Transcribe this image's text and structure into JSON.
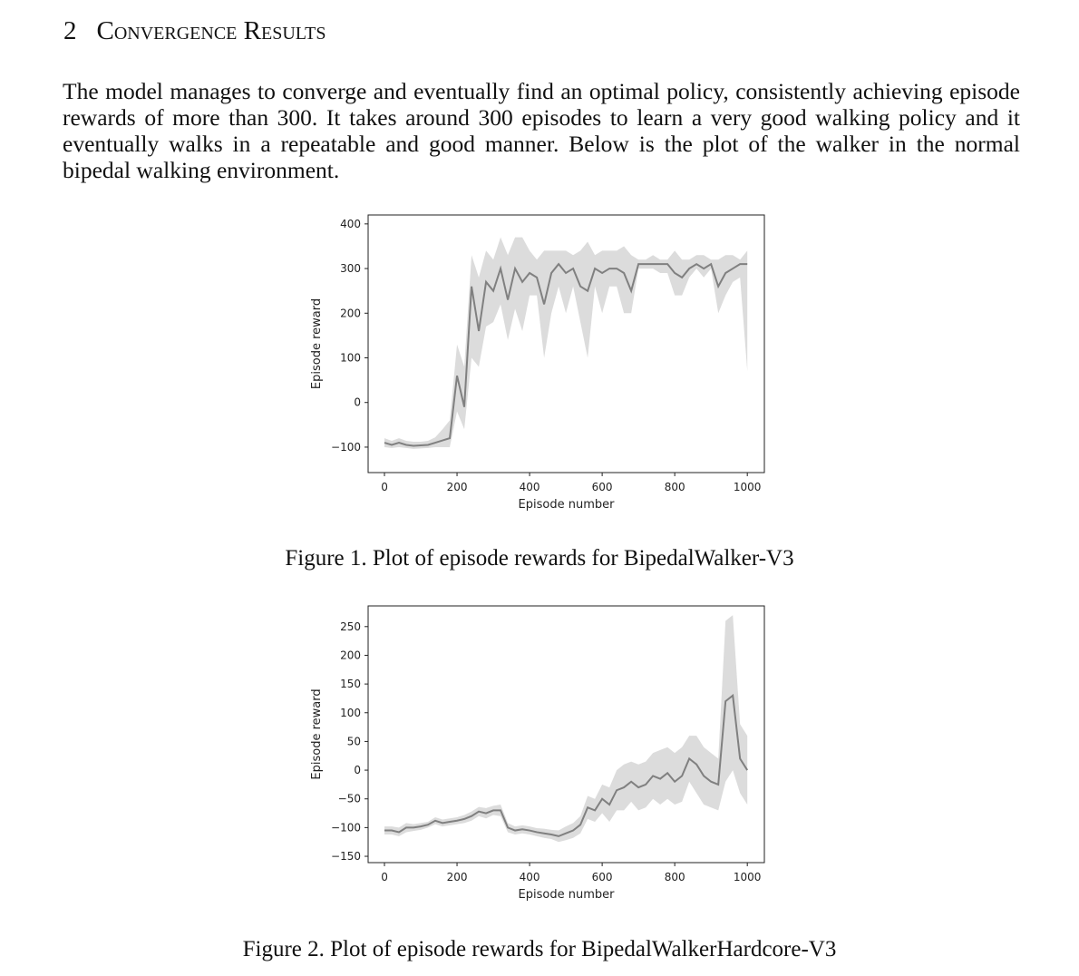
{
  "section": {
    "number": "2",
    "title": "Convergence Results"
  },
  "paragraph": "The model manages to converge and eventually find an optimal policy, consistently achieving episode rewards of more than 300. It takes around 300 episodes to learn a very good walking policy and it eventually walks in a repeatable and good manner. Below is the plot of the walker in the normal bipedal walking environment.",
  "chart_data": [
    {
      "type": "line",
      "caption": "Figure 1. Plot of episode rewards for BipedalWalker-V3",
      "xlabel": "Episode number",
      "ylabel": "Episode reward",
      "color": "#808080",
      "band_color": "#dcdcdc",
      "xlim": [
        -45,
        1047
      ],
      "ylim": [
        -157,
        420
      ],
      "xticks": [
        0,
        200,
        400,
        600,
        800,
        1000
      ],
      "yticks": [
        {
          "value": -100,
          "label": "−100"
        },
        0,
        100,
        200,
        300,
        400
      ],
      "x": [
        0,
        20,
        40,
        60,
        80,
        100,
        120,
        140,
        160,
        180,
        200,
        220,
        240,
        260,
        280,
        300,
        320,
        340,
        360,
        380,
        400,
        420,
        440,
        460,
        480,
        500,
        520,
        540,
        560,
        580,
        600,
        620,
        640,
        660,
        680,
        700,
        720,
        740,
        760,
        780,
        800,
        820,
        840,
        860,
        880,
        900,
        920,
        940,
        960,
        980,
        1000
      ],
      "values": [
        -90,
        -95,
        -90,
        -95,
        -97,
        -96,
        -95,
        -90,
        -85,
        -80,
        60,
        -10,
        260,
        160,
        270,
        250,
        300,
        230,
        300,
        270,
        290,
        280,
        220,
        290,
        310,
        290,
        300,
        260,
        250,
        300,
        290,
        300,
        300,
        290,
        250,
        310,
        310,
        310,
        310,
        310,
        290,
        280,
        300,
        310,
        300,
        310,
        260,
        290,
        300,
        310,
        310
      ],
      "lower": [
        -100,
        -102,
        -100,
        -102,
        -104,
        -103,
        -102,
        -100,
        -100,
        -100,
        -20,
        -60,
        100,
        80,
        170,
        180,
        220,
        140,
        210,
        160,
        240,
        240,
        100,
        200,
        260,
        200,
        260,
        180,
        100,
        260,
        200,
        260,
        260,
        200,
        200,
        300,
        300,
        300,
        290,
        290,
        240,
        240,
        280,
        300,
        280,
        300,
        200,
        240,
        270,
        280,
        70
      ],
      "upper": [
        -80,
        -86,
        -80,
        -86,
        -88,
        -88,
        -86,
        -78,
        -60,
        -40,
        130,
        80,
        330,
        280,
        340,
        320,
        370,
        330,
        370,
        370,
        340,
        320,
        340,
        340,
        340,
        340,
        330,
        340,
        360,
        330,
        340,
        340,
        340,
        350,
        330,
        320,
        320,
        330,
        320,
        320,
        340,
        320,
        320,
        330,
        330,
        320,
        320,
        330,
        330,
        320,
        340
      ]
    },
    {
      "type": "line",
      "caption": "Figure 2. Plot of episode rewards for BipedalWalkerHardcore-V3",
      "xlabel": "Episode number",
      "ylabel": "Episode reward",
      "color": "#808080",
      "band_color": "#dcdcdc",
      "xlim": [
        -45,
        1047
      ],
      "ylim": [
        -161,
        286
      ],
      "xticks": [
        0,
        200,
        400,
        600,
        800,
        1000
      ],
      "yticks": [
        {
          "value": -150,
          "label": "−150"
        },
        {
          "value": -100,
          "label": "−100"
        },
        {
          "value": -50,
          "label": "−50"
        },
        0,
        50,
        100,
        150,
        200,
        250
      ],
      "x": [
        0,
        20,
        40,
        60,
        80,
        100,
        120,
        140,
        160,
        180,
        200,
        220,
        240,
        260,
        280,
        300,
        320,
        340,
        360,
        380,
        400,
        420,
        440,
        460,
        480,
        500,
        520,
        540,
        560,
        580,
        600,
        620,
        640,
        660,
        680,
        700,
        720,
        740,
        760,
        780,
        800,
        820,
        840,
        860,
        880,
        900,
        920,
        940,
        960,
        980,
        1000
      ],
      "values": [
        -105,
        -105,
        -108,
        -100,
        -100,
        -98,
        -95,
        -88,
        -92,
        -90,
        -88,
        -85,
        -80,
        -72,
        -75,
        -70,
        -70,
        -100,
        -105,
        -103,
        -105,
        -108,
        -110,
        -112,
        -115,
        -110,
        -105,
        -95,
        -65,
        -70,
        -50,
        -60,
        -35,
        -30,
        -20,
        -30,
        -25,
        -10,
        -15,
        -5,
        -20,
        -10,
        20,
        10,
        -10,
        -20,
        -25,
        120,
        130,
        20,
        0
      ],
      "lower": [
        -112,
        -112,
        -115,
        -108,
        -106,
        -104,
        -100,
        -94,
        -98,
        -96,
        -94,
        -92,
        -88,
        -80,
        -84,
        -78,
        -80,
        -108,
        -112,
        -110,
        -112,
        -115,
        -118,
        -120,
        -125,
        -122,
        -118,
        -110,
        -85,
        -90,
        -75,
        -90,
        -70,
        -70,
        -55,
        -70,
        -65,
        -50,
        -60,
        -50,
        -60,
        -55,
        -20,
        -40,
        -60,
        -65,
        -70,
        -20,
        0,
        -40,
        -60
      ],
      "upper": [
        -98,
        -98,
        -100,
        -92,
        -94,
        -92,
        -90,
        -82,
        -86,
        -84,
        -82,
        -78,
        -72,
        -64,
        -66,
        -62,
        -60,
        -92,
        -98,
        -96,
        -98,
        -101,
        -102,
        -104,
        -105,
        -98,
        -92,
        -80,
        -45,
        -50,
        -25,
        -30,
        0,
        10,
        15,
        10,
        15,
        30,
        35,
        40,
        30,
        40,
        60,
        60,
        40,
        30,
        20,
        260,
        270,
        80,
        60
      ]
    }
  ]
}
